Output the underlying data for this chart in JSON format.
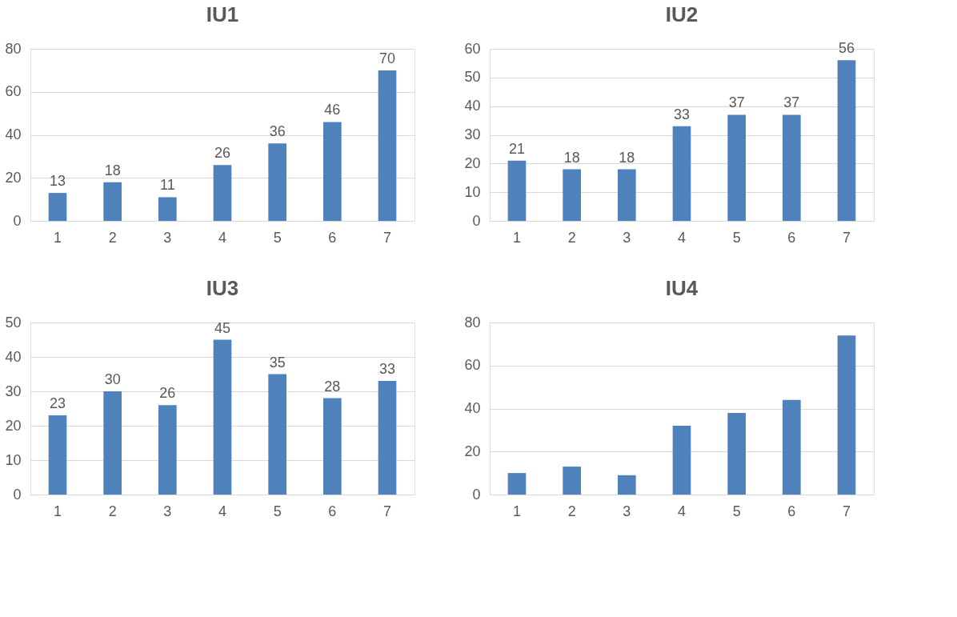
{
  "chart_data": [
    {
      "type": "bar",
      "title": "IU1",
      "categories": [
        "1",
        "2",
        "3",
        "4",
        "5",
        "6",
        "7"
      ],
      "values": [
        13,
        18,
        11,
        26,
        36,
        46,
        70
      ],
      "color": "#4f81bd",
      "ylim": [
        0,
        80
      ],
      "yticks": [
        0,
        20,
        40,
        60,
        80
      ],
      "grid": "y",
      "data_labels": true
    },
    {
      "type": "bar",
      "title": "IU2",
      "categories": [
        "1",
        "2",
        "3",
        "4",
        "5",
        "6",
        "7"
      ],
      "values": [
        21,
        18,
        18,
        33,
        37,
        37,
        56
      ],
      "color": "#4f81bd",
      "ylim": [
        0,
        60
      ],
      "yticks": [
        0,
        10,
        20,
        30,
        40,
        50,
        60
      ],
      "grid": "y",
      "data_labels": true
    },
    {
      "type": "bar",
      "title": "IU3",
      "categories": [
        "1",
        "2",
        "3",
        "4",
        "5",
        "6",
        "7"
      ],
      "values": [
        23,
        30,
        26,
        45,
        35,
        28,
        33
      ],
      "color": "#4f81bd",
      "ylim": [
        0,
        50
      ],
      "yticks": [
        0,
        10,
        20,
        30,
        40,
        50
      ],
      "grid": "y",
      "data_labels": true
    },
    {
      "type": "bar",
      "title": "IU4",
      "categories": [
        "1",
        "2",
        "3",
        "4",
        "5",
        "6",
        "7"
      ],
      "values": [
        10,
        13,
        9,
        32,
        38,
        44,
        74
      ],
      "color": "#4f81bd",
      "ylim": [
        0,
        80
      ],
      "yticks": [
        0,
        20,
        40,
        60,
        80
      ],
      "grid": "y"
    }
  ]
}
